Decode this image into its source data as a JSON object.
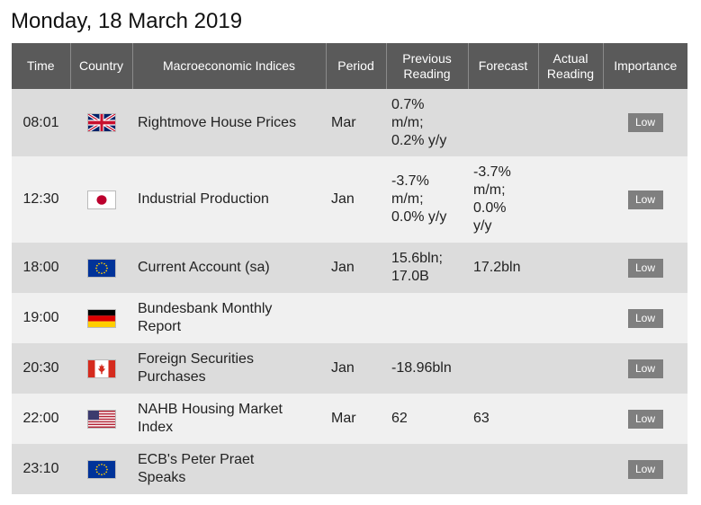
{
  "page": {
    "title": "Monday, 18 March 2019"
  },
  "table": {
    "headers": {
      "time": "Time",
      "country": "Country",
      "indices": "Macroeconomic Indices",
      "period": "Period",
      "previous_line1": "Previous",
      "previous_line2": "Reading",
      "forecast": "Forecast",
      "actual_line1": "Actual",
      "actual_line2": "Reading",
      "importance": "Importance"
    },
    "rows": [
      {
        "time": "08:01",
        "country_icon": "uk-flag-icon",
        "index_line1": "Rightmove House Prices",
        "index_line2": "",
        "period": "Mar",
        "previous_lines": [
          "0.7%",
          "m/m;",
          "0.2% y/y"
        ],
        "forecast_lines": [],
        "actual": "",
        "importance": "Low"
      },
      {
        "time": "12:30",
        "country_icon": "japan-flag-icon",
        "index_line1": "Industrial Production",
        "index_line2": "",
        "period": "Jan",
        "previous_lines": [
          "-3.7%",
          "m/m;",
          "0.0% y/y"
        ],
        "forecast_lines": [
          "-3.7%",
          "m/m;",
          "0.0%",
          "y/y"
        ],
        "actual": "",
        "importance": "Low"
      },
      {
        "time": "18:00",
        "country_icon": "eu-flag-icon",
        "index_line1": "Current Account (sa)",
        "index_line2": "",
        "period": "Jan",
        "previous_lines": [
          "15.6bln;",
          "17.0B"
        ],
        "forecast_lines": [
          "17.2bln"
        ],
        "actual": "",
        "importance": "Low"
      },
      {
        "time": "19:00",
        "country_icon": "germany-flag-icon",
        "index_line1": "Bundesbank Monthly",
        "index_line2": "Report",
        "period": "",
        "previous_lines": [],
        "forecast_lines": [],
        "actual": "",
        "importance": "Low"
      },
      {
        "time": "20:30",
        "country_icon": "canada-flag-icon",
        "index_line1": "Foreign Securities",
        "index_line2": "Purchases",
        "period": "Jan",
        "previous_lines": [
          "-18.96bln"
        ],
        "forecast_lines": [],
        "actual": "",
        "importance": "Low"
      },
      {
        "time": "22:00",
        "country_icon": "usa-flag-icon",
        "index_line1": "NAHB Housing Market",
        "index_line2": "Index",
        "period": "Mar",
        "previous_lines": [
          "62"
        ],
        "forecast_lines": [
          "63"
        ],
        "actual": "",
        "importance": "Low"
      },
      {
        "time": "23:10",
        "country_icon": "eu-flag-icon",
        "index_line1": "ECB's Peter Praet",
        "index_line2": "Speaks",
        "period": "",
        "previous_lines": [],
        "forecast_lines": [],
        "actual": "",
        "importance": "Low"
      }
    ]
  },
  "colors": {
    "header_bg": "#5a5a5a",
    "row_odd": "#dcdcdc",
    "row_even": "#f0f0f0",
    "badge_bg": "#7f7f7f"
  }
}
